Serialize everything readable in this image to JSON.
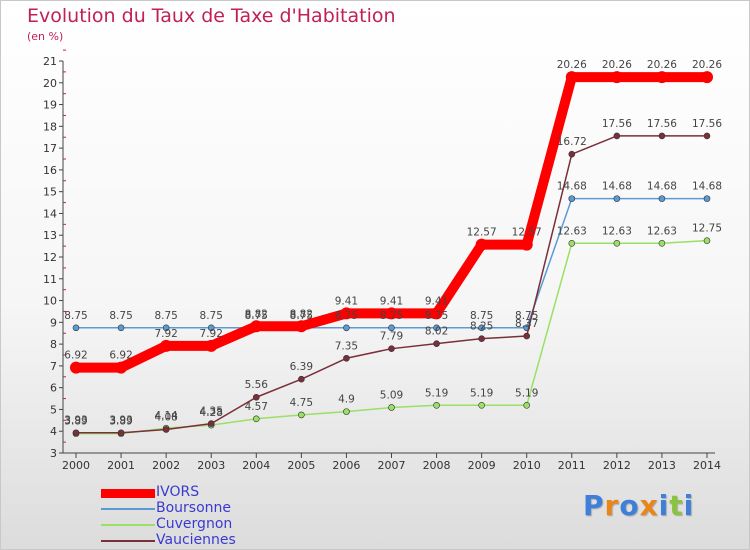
{
  "chart_data": {
    "type": "line",
    "title": "Evolution du Taux de Taxe d'Habitation",
    "subtitle": "(en %)",
    "x": [
      "2000",
      "2001",
      "2002",
      "2003",
      "2004",
      "2005",
      "2006",
      "2007",
      "2008",
      "2009",
      "2010",
      "2011",
      "2012",
      "2013",
      "2014"
    ],
    "ylim": [
      3,
      21
    ],
    "yticks": [
      3,
      4,
      5,
      6,
      7,
      8,
      9,
      10,
      11,
      12,
      13,
      14,
      15,
      16,
      17,
      18,
      19,
      20,
      21
    ],
    "grid": false,
    "legend_position": "bottom-left",
    "series": [
      {
        "name": "IVORS",
        "color": "#ff0000",
        "values": [
          6.92,
          6.92,
          7.92,
          7.92,
          8.82,
          8.82,
          9.41,
          9.41,
          9.41,
          12.57,
          12.57,
          20.26,
          20.26,
          20.26,
          20.26
        ],
        "labels": [
          "6.92",
          "6.92",
          "7.92",
          "7.92",
          "8.82",
          "8.82",
          "9.41",
          "9.41",
          "9.41",
          "12.57",
          "12.57",
          "20.26",
          "20.26",
          "20.26",
          "20.26"
        ]
      },
      {
        "name": "Boursonne",
        "color": "#5b9bd5",
        "values": [
          8.75,
          8.75,
          8.75,
          8.75,
          8.75,
          8.75,
          8.75,
          8.75,
          8.75,
          8.75,
          8.75,
          14.68,
          14.68,
          14.68,
          14.68
        ],
        "labels": [
          "8.75",
          "8.75",
          "8.75",
          "8.75",
          "8.75",
          "8.75",
          "8.75",
          "8.75",
          "8.75",
          "8.75",
          "8.75",
          "14.68",
          "14.68",
          "14.68",
          "14.68"
        ]
      },
      {
        "name": "Cuvergnon",
        "color": "#99e065",
        "values": [
          3.89,
          3.89,
          4.14,
          4.28,
          4.57,
          4.75,
          4.9,
          5.09,
          5.19,
          5.19,
          5.19,
          12.63,
          12.63,
          12.63,
          12.75
        ],
        "labels": [
          "3.89",
          "3.89",
          "4.14",
          "4.28",
          "4.57",
          "4.75",
          "4.9",
          "5.09",
          "5.19",
          "5.19",
          "5.19",
          "12.63",
          "12.63",
          "12.63",
          "12.75"
        ]
      },
      {
        "name": "Vauciennes",
        "color": "#7a2f3a",
        "values": [
          3.93,
          3.93,
          4.08,
          4.35,
          5.56,
          6.39,
          7.35,
          7.79,
          8.02,
          8.25,
          8.37,
          16.72,
          17.56,
          17.56,
          17.56
        ],
        "labels": [
          "3.93",
          "3.93",
          "4.08",
          "4.35",
          "5.56",
          "6.39",
          "7.35",
          "7.79",
          "8.02",
          "8.25",
          "8.37",
          "16.72",
          "17.56",
          "17.56",
          "17.56"
        ]
      }
    ]
  },
  "brand": {
    "text": "Proxiti"
  }
}
